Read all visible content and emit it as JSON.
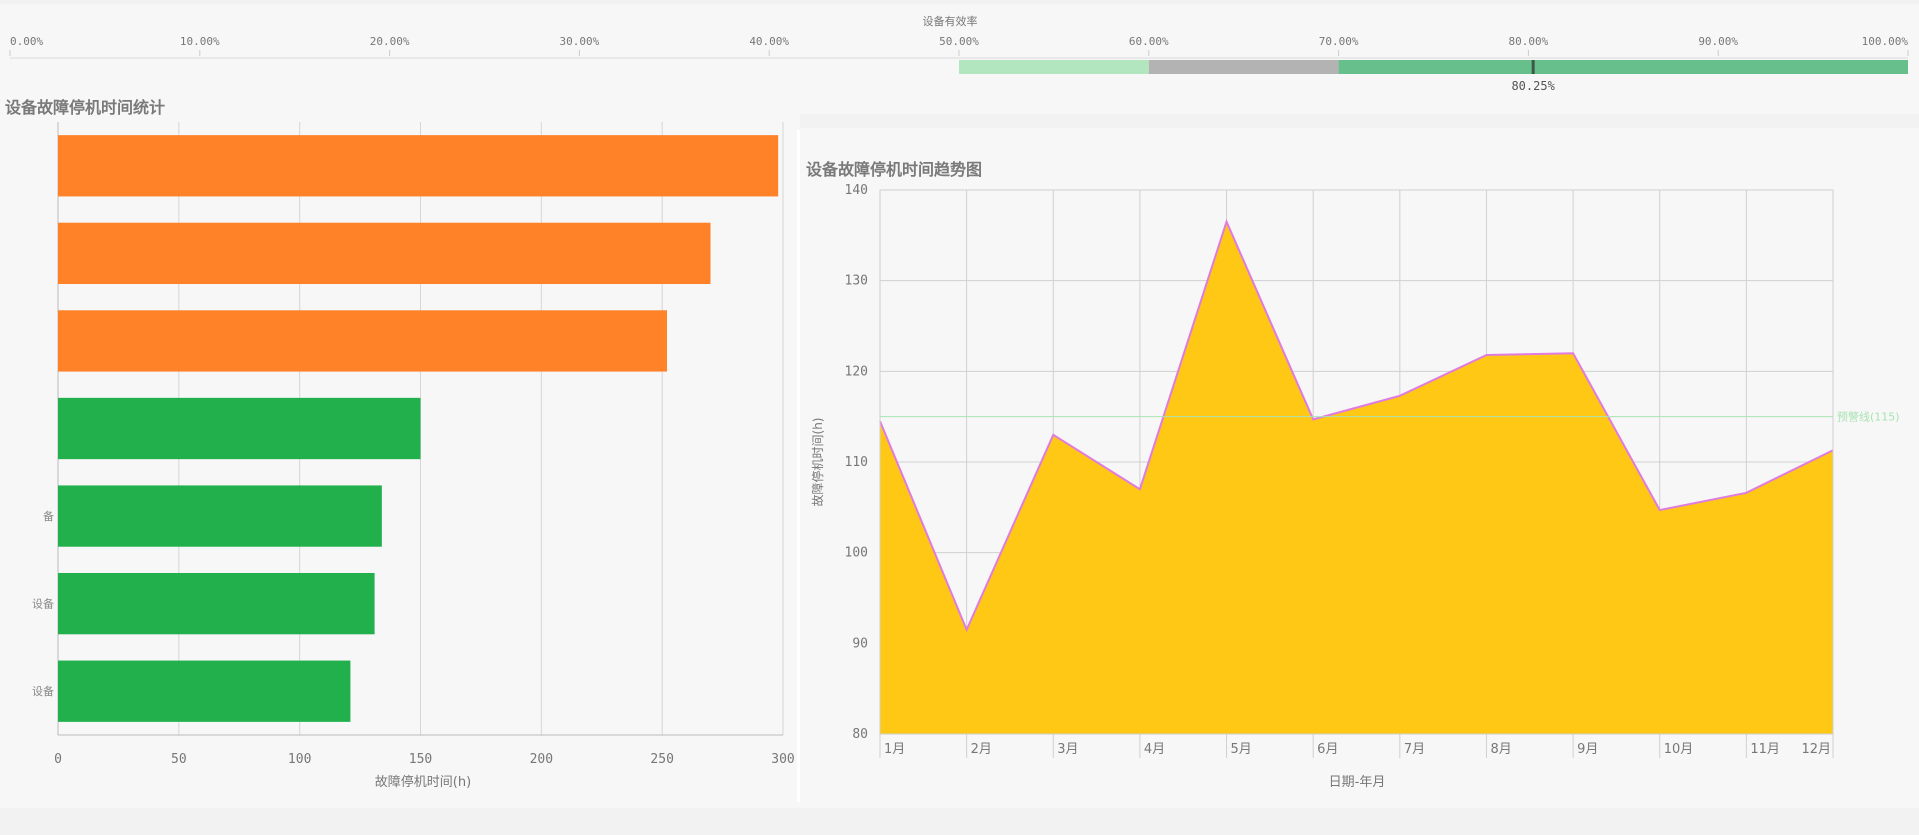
{
  "kpi": {
    "title": "设备有效率",
    "value_label": "80.25%",
    "value": 80.25,
    "axis_ticks": [
      "0.00%",
      "10.00%",
      "20.00%",
      "30.00%",
      "40.00%",
      "50.00%",
      "60.00%",
      "70.00%",
      "80.00%",
      "90.00%",
      "100.00%"
    ],
    "segments": [
      {
        "from": 50,
        "to": 60,
        "color": "#b2e6bf"
      },
      {
        "from": 60,
        "to": 70,
        "color": "#b3b3b3"
      },
      {
        "from": 70,
        "to": 100,
        "color": "#67bf8c"
      }
    ]
  },
  "bar_panel": {
    "title": "设备故障停机时间统计"
  },
  "area_panel": {
    "title": "设备故障停机时间趋势图"
  },
  "chart_data": [
    {
      "type": "bar",
      "orientation": "horizontal",
      "categories": [
        "",
        "",
        "",
        "",
        "备",
        "设备",
        "设备"
      ],
      "values": [
        298,
        270,
        252,
        150,
        134,
        131,
        121
      ],
      "colors": [
        "#ff8229",
        "#ff8229",
        "#ff8229",
        "#22b04c",
        "#22b04c",
        "#22b04c",
        "#22b04c"
      ],
      "xlabel": "故障停机时间(h)",
      "xticks": [
        0,
        50,
        100,
        150,
        200,
        250,
        300
      ],
      "xlim": [
        0,
        300
      ],
      "grid": true
    },
    {
      "type": "area",
      "categories": [
        "1月",
        "2月",
        "3月",
        "4月",
        "5月",
        "6月",
        "7月",
        "8月",
        "9月",
        "10月",
        "11月",
        "12月"
      ],
      "values": [
        114.5,
        91.5,
        113,
        107,
        136.5,
        114.7,
        117.3,
        121.8,
        122,
        104.7,
        106.6,
        111.3
      ],
      "fill": "#ffc814",
      "line": "#e07be0",
      "ylabel": "故障停机时间(h)",
      "xlabel": "日期-年月",
      "ylim": [
        80,
        140
      ],
      "yticks": [
        80,
        90,
        100,
        110,
        120,
        130,
        140
      ],
      "reference_line": {
        "value": 115,
        "label": "预警线(115)",
        "color": "#a8e3b4"
      },
      "grid": true
    }
  ]
}
